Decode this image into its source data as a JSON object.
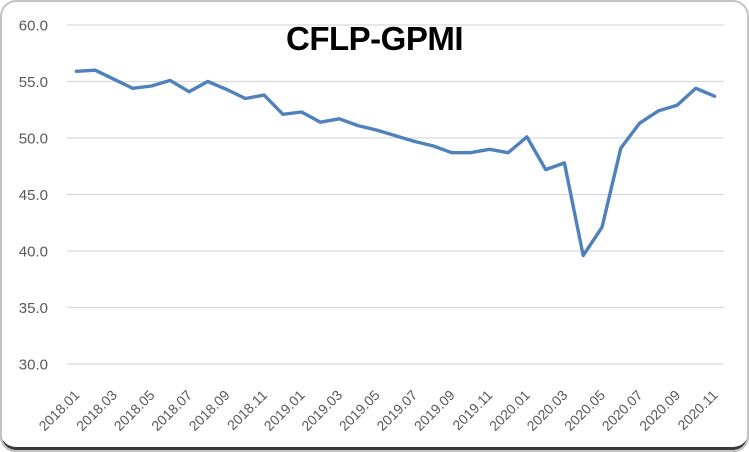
{
  "window": {
    "title": "CFLP-GPMI"
  },
  "chart_data": {
    "type": "line",
    "title": "CFLP-GPMI",
    "x": [
      "2018.01",
      "2018.02",
      "2018.03",
      "2018.04",
      "2018.05",
      "2018.06",
      "2018.07",
      "2018.08",
      "2018.09",
      "2018.10",
      "2018.11",
      "2018.12",
      "2019.01",
      "2019.02",
      "2019.03",
      "2019.04",
      "2019.05",
      "2019.06",
      "2019.07",
      "2019.08",
      "2019.09",
      "2019.10",
      "2019.11",
      "2019.12",
      "2020.01",
      "2020.02",
      "2020.03",
      "2020.04",
      "2020.05",
      "2020.06",
      "2020.07",
      "2020.08",
      "2020.09",
      "2020.10",
      "2020.11"
    ],
    "series": [
      {
        "name": "CFLP-GPMI",
        "color": "#4F81BD",
        "values": [
          55.9,
          56.0,
          55.2,
          54.4,
          54.6,
          55.1,
          54.1,
          55.0,
          54.3,
          53.5,
          53.8,
          52.1,
          52.3,
          51.4,
          51.7,
          51.1,
          50.7,
          50.2,
          49.7,
          49.3,
          48.7,
          48.7,
          49.0,
          48.7,
          50.1,
          47.2,
          47.8,
          39.6,
          42.1,
          49.1,
          51.3,
          52.4,
          52.9,
          54.4,
          53.7
        ]
      }
    ],
    "ylim": [
      30,
      60
    ],
    "y_ticks": [
      "30.0",
      "35.0",
      "40.0",
      "45.0",
      "50.0",
      "55.0",
      "60.0"
    ],
    "y_tick_values": [
      30,
      35,
      40,
      45,
      50,
      55,
      60
    ],
    "x_tick_every": 2,
    "x_tick_rotation_deg": 45,
    "grid": "horizontal",
    "legend": "none",
    "colors": {
      "line": "#4F81BD",
      "gridline": "#D9D9D9",
      "tick_label": "#595959",
      "title": "#000000",
      "background": "#FFFFFF"
    }
  }
}
